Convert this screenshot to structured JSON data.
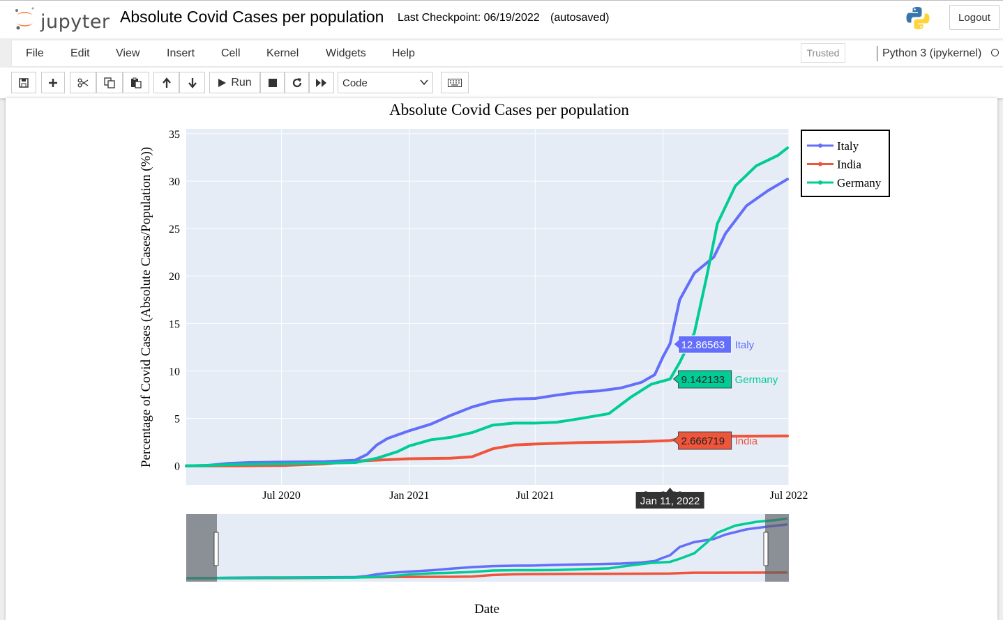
{
  "app": {
    "logo_text": "jupyter",
    "notebook_title": "Absolute Covid Cases per population",
    "checkpoint": "Last Checkpoint: 06/19/2022",
    "autosave": "(autosaved)",
    "logout_label": "Logout"
  },
  "menubar": {
    "items": [
      "File",
      "Edit",
      "View",
      "Insert",
      "Cell",
      "Kernel",
      "Widgets",
      "Help"
    ],
    "trusted": "Trusted",
    "kernel": "Python 3 (ipykernel)"
  },
  "toolbar": {
    "icons": [
      "save-icon",
      "add-cell-icon",
      "cut-icon",
      "copy-icon",
      "paste-icon",
      "move-up-icon",
      "move-down-icon",
      "run-icon",
      "stop-icon",
      "restart-icon",
      "fast-forward-icon",
      "keyboard-icon"
    ],
    "run_label": "Run",
    "cell_type": "Code"
  },
  "chart_data": {
    "type": "line",
    "title": "Absolute Covid Cases per population",
    "xlabel": "Date",
    "ylabel": "Percentage of Covid Cases (Absolute Cases/Population (%))",
    "x_range": [
      "2020-02-15",
      "2022-07-01"
    ],
    "ylim": [
      -2,
      35.5
    ],
    "x_ticks": [
      {
        "date": "2020-07-01",
        "label": "Jul 2020"
      },
      {
        "date": "2021-01-01",
        "label": "Jan 2021"
      },
      {
        "date": "2021-07-01",
        "label": "Jul 2021"
      },
      {
        "date": "2022-01-01",
        "label": "Jan 2022"
      },
      {
        "date": "2022-07-01",
        "label": "Jul 2022"
      }
    ],
    "y_ticks": [
      0,
      5,
      10,
      15,
      20,
      25,
      30,
      35
    ],
    "grid": true,
    "legend_position": "top-right, outside plot",
    "hover": {
      "date_label": "Jan 11, 2022",
      "labels": [
        {
          "series": "Italy",
          "value": "12.86563"
        },
        {
          "series": "Germany",
          "value": "9.142133"
        },
        {
          "series": "India",
          "value": "2.666719"
        }
      ]
    },
    "series": [
      {
        "name": "Italy",
        "color": "#636efa",
        "points": [
          [
            "2020-02-15",
            0
          ],
          [
            "2020-03-15",
            0.04
          ],
          [
            "2020-04-15",
            0.25
          ],
          [
            "2020-05-15",
            0.35
          ],
          [
            "2020-07-01",
            0.4
          ],
          [
            "2020-09-01",
            0.45
          ],
          [
            "2020-10-15",
            0.6
          ],
          [
            "2020-11-01",
            1.2
          ],
          [
            "2020-11-15",
            2.2
          ],
          [
            "2020-12-01",
            2.9
          ],
          [
            "2021-01-01",
            3.7
          ],
          [
            "2021-02-01",
            4.4
          ],
          [
            "2021-03-01",
            5.3
          ],
          [
            "2021-04-01",
            6.2
          ],
          [
            "2021-05-01",
            6.8
          ],
          [
            "2021-06-01",
            7.05
          ],
          [
            "2021-07-01",
            7.1
          ],
          [
            "2021-08-01",
            7.45
          ],
          [
            "2021-09-01",
            7.75
          ],
          [
            "2021-10-01",
            7.9
          ],
          [
            "2021-11-01",
            8.2
          ],
          [
            "2021-12-01",
            8.8
          ],
          [
            "2021-12-20",
            9.6
          ],
          [
            "2022-01-01",
            11.5
          ],
          [
            "2022-01-11",
            12.87
          ],
          [
            "2022-01-25",
            17.5
          ],
          [
            "2022-02-15",
            20.3
          ],
          [
            "2022-03-15",
            22
          ],
          [
            "2022-04-01",
            24.5
          ],
          [
            "2022-05-01",
            27.4
          ],
          [
            "2022-06-01",
            29.0
          ],
          [
            "2022-06-29",
            30.2
          ]
        ]
      },
      {
        "name": "India",
        "color": "#ef553b",
        "points": [
          [
            "2020-02-15",
            0
          ],
          [
            "2020-05-01",
            0
          ],
          [
            "2020-07-01",
            0.04
          ],
          [
            "2020-09-01",
            0.2
          ],
          [
            "2020-10-15",
            0.5
          ],
          [
            "2021-01-01",
            0.75
          ],
          [
            "2021-03-01",
            0.8
          ],
          [
            "2021-04-01",
            0.95
          ],
          [
            "2021-05-01",
            1.8
          ],
          [
            "2021-06-01",
            2.2
          ],
          [
            "2021-07-01",
            2.3
          ],
          [
            "2021-09-01",
            2.45
          ],
          [
            "2021-12-01",
            2.55
          ],
          [
            "2022-01-11",
            2.67
          ],
          [
            "2022-01-25",
            2.85
          ],
          [
            "2022-02-15",
            3.1
          ],
          [
            "2022-06-29",
            3.15
          ]
        ]
      },
      {
        "name": "Germany",
        "color": "#00cc96",
        "points": [
          [
            "2020-02-15",
            0
          ],
          [
            "2020-05-01",
            0.15
          ],
          [
            "2020-07-01",
            0.22
          ],
          [
            "2020-09-01",
            0.3
          ],
          [
            "2020-10-15",
            0.35
          ],
          [
            "2020-11-15",
            0.8
          ],
          [
            "2020-12-15",
            1.5
          ],
          [
            "2021-01-01",
            2.1
          ],
          [
            "2021-02-01",
            2.75
          ],
          [
            "2021-03-01",
            3.0
          ],
          [
            "2021-04-01",
            3.5
          ],
          [
            "2021-05-01",
            4.3
          ],
          [
            "2021-06-01",
            4.5
          ],
          [
            "2021-07-01",
            4.5
          ],
          [
            "2021-08-01",
            4.6
          ],
          [
            "2021-09-01",
            4.95
          ],
          [
            "2021-10-15",
            5.5
          ],
          [
            "2021-11-15",
            7.2
          ],
          [
            "2021-12-15",
            8.6
          ],
          [
            "2022-01-11",
            9.14
          ],
          [
            "2022-01-25",
            10.9
          ],
          [
            "2022-02-15",
            14.0
          ],
          [
            "2022-03-05",
            20.0
          ],
          [
            "2022-03-20",
            25.5
          ],
          [
            "2022-04-15",
            29.5
          ],
          [
            "2022-05-15",
            31.6
          ],
          [
            "2022-06-15",
            32.7
          ],
          [
            "2022-06-29",
            33.5
          ]
        ]
      }
    ]
  }
}
